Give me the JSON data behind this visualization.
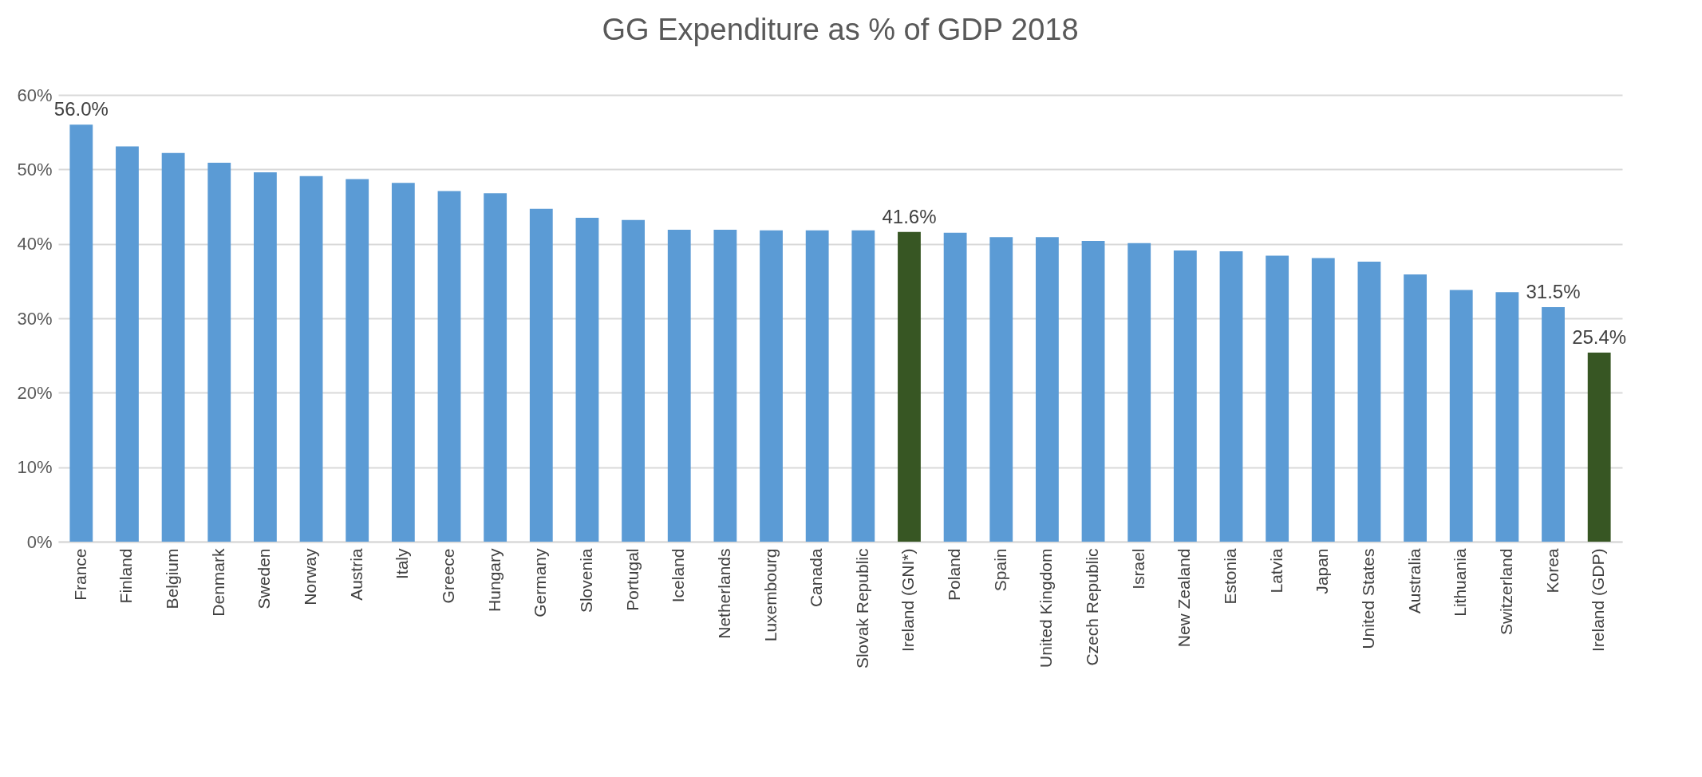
{
  "chart_data": {
    "type": "bar",
    "title": "GG Expenditure as % of GDP 2018",
    "categories": [
      "France",
      "Finland",
      "Belgium",
      "Denmark",
      "Sweden",
      "Norway",
      "Austria",
      "Italy",
      "Greece",
      "Hungary",
      "Germany",
      "Slovenia",
      "Portugal",
      "Iceland",
      "Netherlands",
      "Luxembourg",
      "Canada",
      "Slovak Republic",
      "Ireland (GNI*)",
      "Poland",
      "Spain",
      "United Kingdom",
      "Czech Republic",
      "Israel",
      "New Zealand",
      "Estonia",
      "Latvia",
      "Japan",
      "United States",
      "Australia",
      "Lithuania",
      "Switzerland",
      "Korea",
      "Ireland (GDP)"
    ],
    "values": [
      56.0,
      53.1,
      52.2,
      50.9,
      49.6,
      49.1,
      48.7,
      48.2,
      47.1,
      46.8,
      44.7,
      43.5,
      43.2,
      41.9,
      41.9,
      41.8,
      41.8,
      41.8,
      41.6,
      41.5,
      40.9,
      40.9,
      40.4,
      40.1,
      39.1,
      39.0,
      38.4,
      38.1,
      37.6,
      35.9,
      33.8,
      33.5,
      31.5,
      25.4
    ],
    "colors": [
      "#5b9bd5",
      "#5b9bd5",
      "#5b9bd5",
      "#5b9bd5",
      "#5b9bd5",
      "#5b9bd5",
      "#5b9bd5",
      "#5b9bd5",
      "#5b9bd5",
      "#5b9bd5",
      "#5b9bd5",
      "#5b9bd5",
      "#5b9bd5",
      "#5b9bd5",
      "#5b9bd5",
      "#5b9bd5",
      "#5b9bd5",
      "#5b9bd5",
      "#375623",
      "#5b9bd5",
      "#5b9bd5",
      "#5b9bd5",
      "#5b9bd5",
      "#5b9bd5",
      "#5b9bd5",
      "#5b9bd5",
      "#5b9bd5",
      "#5b9bd5",
      "#5b9bd5",
      "#5b9bd5",
      "#5b9bd5",
      "#5b9bd5",
      "#5b9bd5",
      "#375623"
    ],
    "value_labels": [
      "56.0%",
      null,
      null,
      null,
      null,
      null,
      null,
      null,
      null,
      null,
      null,
      null,
      null,
      null,
      null,
      null,
      null,
      null,
      "41.6%",
      null,
      null,
      null,
      null,
      null,
      null,
      null,
      null,
      null,
      null,
      null,
      null,
      null,
      "31.5%",
      "25.4%"
    ],
    "ylim": [
      0,
      60
    ],
    "yticks": [
      {
        "value": 0,
        "label": "0%"
      },
      {
        "value": 10,
        "label": "10%"
      },
      {
        "value": 20,
        "label": "20%"
      },
      {
        "value": 30,
        "label": "30%"
      },
      {
        "value": 40,
        "label": "40%"
      },
      {
        "value": 50,
        "label": "50%"
      },
      {
        "value": 60,
        "label": "60%"
      }
    ],
    "grid": "y"
  }
}
